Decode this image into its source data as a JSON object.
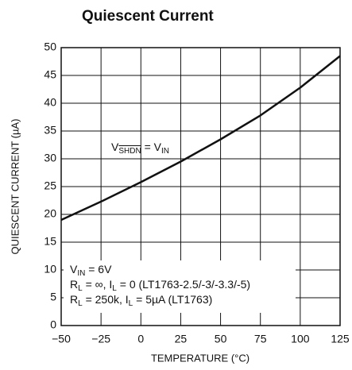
{
  "chart_data": {
    "type": "line",
    "title": "Quiescent Current",
    "x_label": "TEMPERATURE (°C)",
    "y_label": "QUIESCENT CURRENT (µA)",
    "x": [
      -50,
      -25,
      0,
      25,
      50,
      75,
      100,
      125
    ],
    "series": [
      {
        "color": "#111111",
        "values": [
          19,
          22.3,
          25.8,
          29.5,
          33.5,
          37.8,
          42.8,
          48.5
        ]
      }
    ],
    "xlim": [
      -50,
      125
    ],
    "xticks": [
      {
        "value": -50,
        "label": "−50"
      },
      {
        "value": -25,
        "label": "−25"
      },
      0,
      25,
      50,
      75,
      100,
      125
    ],
    "ylim": [
      0,
      50
    ],
    "yticks": [
      0,
      5,
      10,
      15,
      20,
      25,
      30,
      35,
      40,
      45,
      50
    ],
    "grid": true,
    "annotations": [
      [
        "V",
        "SHDN",
        " = V",
        "IN"
      ]
    ],
    "notes": [
      [
        "V",
        "IN",
        " = 6V"
      ],
      [
        "R",
        "L",
        " = ∞, I",
        "L",
        " = 0 (LT1763-2.5/-3/-3.3/-5)"
      ],
      [
        "R",
        "L",
        " = 250k, I",
        "L",
        " = 5µA (LT1763)"
      ]
    ]
  }
}
